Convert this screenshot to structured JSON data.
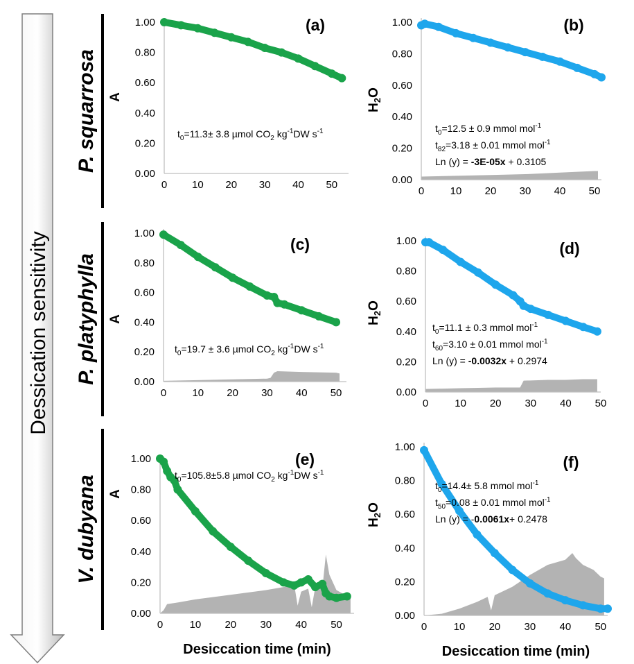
{
  "arrow_label": "Dessication sensitivity",
  "species": [
    "P. squarrosa",
    "P. platyphylla",
    "V. dubyana"
  ],
  "x_axis_label": "Desiccation time (min)",
  "colors": {
    "A": "#1aa34a",
    "H2O": "#1ea6ec",
    "area": "#b3b3b3"
  },
  "chart_data": [
    {
      "panel": "(a)",
      "type": "line",
      "ylabel": "A",
      "xlabel": "",
      "xlim": [
        0,
        55
      ],
      "ylim": [
        0,
        1
      ],
      "x_ticks": [
        "0",
        "10",
        "20",
        "30",
        "40",
        "50"
      ],
      "y_ticks": [
        "0.00",
        "0.20",
        "0.40",
        "0.60",
        "0.80",
        "1.00"
      ],
      "series": [
        {
          "x": [
            0,
            5,
            10,
            15,
            20,
            25,
            30,
            35,
            40,
            45,
            50,
            53
          ],
          "y": [
            1.0,
            0.98,
            0.96,
            0.93,
            0.9,
            0.87,
            0.83,
            0.8,
            0.76,
            0.71,
            0.66,
            0.63
          ]
        }
      ],
      "area": {
        "x": [],
        "y": []
      },
      "annotations": [
        {
          "main": "t",
          "sub": "0",
          "rest": "=11.3± 3.8 µmol CO",
          "sub2": "2",
          "rest2": " kg",
          "sup": "-1",
          "rest3": "DW s",
          "sup2": "-1"
        }
      ]
    },
    {
      "panel": "(b)",
      "type": "line",
      "ylabel": "H2O",
      "xlabel": "",
      "xlim": [
        0,
        52
      ],
      "ylim": [
        0,
        1
      ],
      "x_ticks": [
        "0",
        "10",
        "20",
        "30",
        "40",
        "50"
      ],
      "y_ticks": [
        "0.00",
        "0.20",
        "0.40",
        "0.60",
        "0.80",
        "1.00"
      ],
      "series": [
        {
          "x": [
            0,
            1,
            5,
            10,
            15,
            20,
            25,
            30,
            35,
            40,
            45,
            50,
            52
          ],
          "y": [
            0.98,
            0.99,
            0.97,
            0.93,
            0.9,
            0.87,
            0.84,
            0.81,
            0.78,
            0.75,
            0.71,
            0.67,
            0.65
          ]
        }
      ],
      "area": {
        "x": [
          0,
          10,
          20,
          30,
          40,
          50,
          51
        ],
        "y": [
          0.02,
          0.025,
          0.03,
          0.035,
          0.045,
          0.055,
          0.055
        ]
      },
      "annotations": [
        {
          "main": "t",
          "sub": "0",
          "rest": "=12.5 ±  0.9 mmol mol",
          "sup": "-1"
        },
        {
          "main": "t",
          "sub": "82",
          "rest": "=3.18 ±  0.01 mmol mol",
          "sup": "-1"
        },
        {
          "main": "Ln (y) = ",
          "bold": "-3E-05x",
          "rest": " + 0.3105"
        }
      ]
    },
    {
      "panel": "(c)",
      "type": "line",
      "ylabel": "A",
      "xlabel": "",
      "xlim": [
        0,
        53
      ],
      "ylim": [
        0,
        1
      ],
      "x_ticks": [
        "0",
        "10",
        "20",
        "30",
        "40",
        "50"
      ],
      "y_ticks": [
        "0.00",
        "0.20",
        "0.40",
        "0.60",
        "0.80",
        "1.00"
      ],
      "series": [
        {
          "x": [
            0,
            5,
            10,
            15,
            20,
            25,
            30,
            32,
            33,
            35,
            40,
            45,
            50
          ],
          "y": [
            0.99,
            0.92,
            0.84,
            0.77,
            0.7,
            0.64,
            0.58,
            0.57,
            0.53,
            0.52,
            0.48,
            0.44,
            0.4
          ]
        }
      ],
      "area": {
        "x": [
          0,
          10,
          20,
          30,
          31,
          32,
          33,
          40,
          50,
          51
        ],
        "y": [
          0.005,
          0.01,
          0.015,
          0.02,
          0.025,
          0.06,
          0.07,
          0.065,
          0.06,
          0.055
        ]
      },
      "annotations": [
        {
          "main": "t",
          "sub": "0",
          "rest": "=19.7 ±  3.6 µmol CO",
          "sub2": "2",
          "rest2": " kg",
          "sup": "-1",
          "rest3": "DW s",
          "sup2": "-1"
        }
      ]
    },
    {
      "panel": "(d)",
      "type": "line",
      "ylabel": "H2O",
      "xlabel": "",
      "xlim": [
        0,
        50
      ],
      "ylim": [
        0,
        1
      ],
      "x_ticks": [
        "0",
        "10",
        "20",
        "30",
        "40",
        "50"
      ],
      "y_ticks": [
        "0.00",
        "0.20",
        "0.40",
        "0.60",
        "0.80",
        "1.00"
      ],
      "series": [
        {
          "x": [
            0,
            1,
            5,
            10,
            15,
            20,
            25,
            27,
            28,
            30,
            35,
            40,
            45,
            49
          ],
          "y": [
            0.99,
            0.99,
            0.94,
            0.86,
            0.79,
            0.71,
            0.64,
            0.6,
            0.57,
            0.55,
            0.51,
            0.47,
            0.43,
            0.4
          ]
        }
      ],
      "area": {
        "x": [
          0,
          10,
          20,
          27,
          28,
          35,
          40,
          45,
          49
        ],
        "y": [
          0.02,
          0.025,
          0.03,
          0.03,
          0.075,
          0.08,
          0.08,
          0.085,
          0.085
        ]
      },
      "annotations": [
        {
          "main": "t",
          "sub": "0",
          "rest": "=11.1 ±  0.3 mmol mol",
          "sup": "-1"
        },
        {
          "main": "t",
          "sub": "60",
          "rest": "=3.10 ± 0.01 mmol mol",
          "sup": "-1"
        },
        {
          "main": "Ln (y) = ",
          "bold": "-0.0032x",
          "rest": " + 0.2974"
        }
      ]
    },
    {
      "panel": "(e)",
      "type": "line",
      "ylabel": "A",
      "xlabel": "Desiccation time (min)",
      "xlim": [
        0,
        55
      ],
      "ylim": [
        0,
        1
      ],
      "x_ticks": [
        "0",
        "10",
        "20",
        "30",
        "40",
        "50"
      ],
      "y_ticks": [
        "0.00",
        "0.20",
        "0.40",
        "0.60",
        "0.80",
        "1.00"
      ],
      "series": [
        {
          "x": [
            0,
            1,
            2,
            3,
            4,
            5,
            10,
            15,
            20,
            25,
            30,
            35,
            38,
            40,
            42,
            44,
            46,
            47,
            48,
            50,
            53
          ],
          "y": [
            1.0,
            0.98,
            0.92,
            0.88,
            0.86,
            0.8,
            0.66,
            0.53,
            0.43,
            0.34,
            0.26,
            0.2,
            0.18,
            0.2,
            0.22,
            0.17,
            0.19,
            0.13,
            0.11,
            0.1,
            0.11
          ]
        }
      ],
      "area": {
        "x": [
          0,
          1,
          2,
          5,
          10,
          20,
          30,
          35,
          38,
          39,
          40,
          42,
          43,
          44,
          46,
          47,
          48,
          50,
          54
        ],
        "y": [
          0.0,
          0.02,
          0.06,
          0.07,
          0.09,
          0.12,
          0.15,
          0.17,
          0.19,
          0.05,
          0.14,
          0.16,
          0.04,
          0.17,
          0.16,
          0.38,
          0.25,
          0.15,
          0.1
        ]
      },
      "annotations": [
        {
          "main": "t",
          "sub": "0",
          "rest": "=105.8±5.8 µmol CO",
          "sub2": "2",
          "rest2": " kg",
          "sup": "-1",
          "rest3": "DW  s",
          "sup2": "-1"
        }
      ]
    },
    {
      "panel": "(f)",
      "type": "line",
      "ylabel": "H2O",
      "xlabel": "Desiccation time (min)",
      "xlim": [
        0,
        52
      ],
      "ylim": [
        0,
        1
      ],
      "x_ticks": [
        "0",
        "10",
        "20",
        "30",
        "40",
        "50"
      ],
      "y_ticks": [
        "0.00",
        "0.20",
        "0.40",
        "0.60",
        "0.80",
        "1.00"
      ],
      "series": [
        {
          "x": [
            0,
            5,
            10,
            15,
            20,
            25,
            30,
            35,
            40,
            45,
            50,
            52
          ],
          "y": [
            0.98,
            0.78,
            0.62,
            0.48,
            0.37,
            0.27,
            0.19,
            0.13,
            0.09,
            0.06,
            0.04,
            0.04
          ]
        }
      ],
      "area": {
        "x": [
          0,
          5,
          10,
          15,
          18,
          19,
          20,
          25,
          30,
          35,
          40,
          42,
          43,
          45,
          48,
          50,
          51
        ],
        "y": [
          0.0,
          0.01,
          0.04,
          0.08,
          0.11,
          0.03,
          0.12,
          0.17,
          0.24,
          0.3,
          0.33,
          0.37,
          0.34,
          0.3,
          0.27,
          0.23,
          0.22
        ]
      },
      "annotations": [
        {
          "main": "t",
          "sub": "0",
          "rest": "=14.4±  5.8 mmol mol",
          "sup": "-1"
        },
        {
          "main": "t",
          "sub": "50",
          "rest": "=0.08 ±  0.01 mmol mol",
          "sup": "-1"
        },
        {
          "main": "Ln (y) = -",
          "bold": "0.0061x",
          "rest": "+ 0.2478"
        }
      ]
    }
  ]
}
